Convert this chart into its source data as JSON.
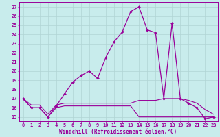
{
  "xlabel": "Windchill (Refroidissement éolien,°C)",
  "ylabel_ticks": [
    15,
    16,
    17,
    18,
    19,
    20,
    21,
    22,
    23,
    24,
    25,
    26,
    27
  ],
  "xlim": [
    -0.5,
    23.5
  ],
  "ylim": [
    14.5,
    27.5
  ],
  "xticks": [
    0,
    1,
    2,
    3,
    4,
    5,
    6,
    7,
    8,
    9,
    10,
    11,
    12,
    13,
    14,
    15,
    16,
    17,
    18,
    19,
    20,
    21,
    22,
    23
  ],
  "background_color": "#c8ecec",
  "grid_color": "#b0d4d4",
  "line_color": "#990099",
  "line1_x": [
    0,
    1,
    2,
    3,
    4,
    5,
    6,
    7,
    8,
    9,
    10,
    11,
    12,
    13,
    14,
    15,
    16,
    17,
    18,
    19,
    20,
    21,
    22,
    23
  ],
  "line1_y": [
    17,
    16,
    16,
    15,
    16.2,
    17.5,
    18.8,
    19.5,
    20.0,
    19.2,
    21.5,
    23.2,
    24.3,
    26.5,
    27.0,
    24.5,
    24.2,
    17.0,
    25.2,
    17.0,
    16.5,
    16.0,
    14.8,
    15.0
  ],
  "line2_x": [
    0,
    1,
    2,
    3,
    4,
    5,
    6,
    7,
    8,
    9,
    10,
    11,
    12,
    13,
    14,
    15,
    16,
    17,
    18,
    19,
    20,
    21,
    22,
    23
  ],
  "line2_y": [
    17,
    16.0,
    16.0,
    15.0,
    16.0,
    16.2,
    16.2,
    16.2,
    16.2,
    16.2,
    16.2,
    16.2,
    16.2,
    16.2,
    15.0,
    15.0,
    15.0,
    15.0,
    15.0,
    15.0,
    15.0,
    15.0,
    15.0,
    15.0
  ],
  "line3_x": [
    0,
    1,
    2,
    3,
    4,
    5,
    6,
    7,
    8,
    9,
    10,
    11,
    12,
    13,
    14,
    15,
    16,
    17,
    18,
    19,
    20,
    21,
    22,
    23
  ],
  "line3_y": [
    17,
    16.3,
    16.3,
    15.3,
    16.3,
    16.5,
    16.5,
    16.5,
    16.5,
    16.5,
    16.5,
    16.5,
    16.5,
    16.5,
    16.8,
    16.8,
    16.8,
    17.0,
    17.0,
    17.0,
    16.8,
    16.5,
    15.8,
    15.3
  ]
}
